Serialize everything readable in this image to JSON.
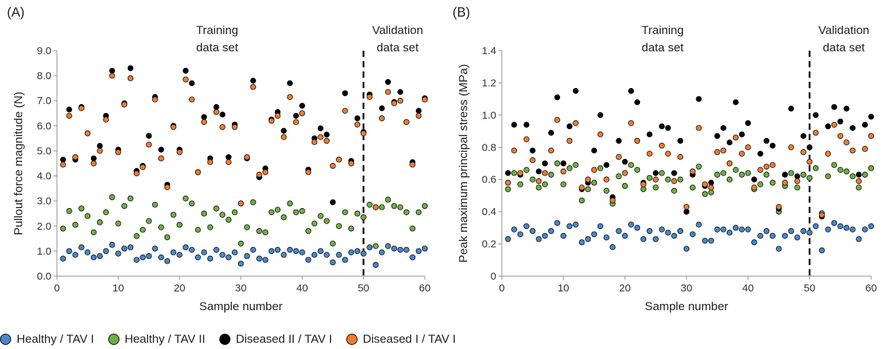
{
  "colors": {
    "Healthy / TAV I": "#4a86c8",
    "Healthy / TAV II": "#6fad47",
    "Diseased II / TAV I": "#000000",
    "Diseased I / TAV I": "#ec7c30"
  },
  "legend": [
    {
      "label": "Healthy  / TAV I",
      "series": "Healthy / TAV I"
    },
    {
      "label": "Healthy  / TAV II",
      "series": "Healthy / TAV II"
    },
    {
      "label": "Diseased II / TAV I",
      "series": "Diseased II / TAV I"
    },
    {
      "label": "Diseased I / TAV I",
      "series": "Diseased I / TAV I"
    }
  ],
  "chart_data": [
    {
      "type": "scatter",
      "panel_label": "(A)",
      "xlabel": "Sample number",
      "ylabel": "Pullout force magnitude (N)",
      "xlim": [
        0,
        60
      ],
      "ylim": [
        0,
        9
      ],
      "xticks": [
        "0",
        "10",
        "20",
        "30",
        "40",
        "50",
        "60"
      ],
      "yticks": [
        "0.0",
        "1.0",
        "2.0",
        "3.0",
        "4.0",
        "5.0",
        "6.0",
        "7.0",
        "8.0",
        "9.0"
      ],
      "divider_x": 50,
      "annotations": {
        "training_1": "Training",
        "training_2": "data set",
        "validation_1": "Validation",
        "validation_2": "data set"
      },
      "x": [
        1,
        2,
        3,
        4,
        5,
        6,
        7,
        8,
        9,
        10,
        11,
        12,
        13,
        14,
        15,
        16,
        17,
        18,
        19,
        20,
        21,
        22,
        23,
        24,
        25,
        26,
        27,
        28,
        29,
        30,
        31,
        32,
        33,
        34,
        35,
        36,
        37,
        38,
        39,
        40,
        41,
        42,
        43,
        44,
        45,
        46,
        47,
        48,
        49,
        50,
        51,
        52,
        53,
        54,
        55,
        56,
        57,
        58,
        59,
        60
      ],
      "series": [
        {
          "name": "Healthy / TAV I",
          "values": [
            0.7,
            1.0,
            0.85,
            1.15,
            0.95,
            0.75,
            0.8,
            1.0,
            1.25,
            0.9,
            1.1,
            1.15,
            0.65,
            0.75,
            0.8,
            1.1,
            0.75,
            0.6,
            0.95,
            0.85,
            1.15,
            1.05,
            0.75,
            0.95,
            0.7,
            1.05,
            0.85,
            0.75,
            0.95,
            0.5,
            0.8,
            1.05,
            0.7,
            0.65,
            1.0,
            1.05,
            0.85,
            1.05,
            1.0,
            0.95,
            0.65,
            0.85,
            1.0,
            0.85,
            0.55,
            0.85,
            0.65,
            0.95,
            1.0,
            0.9,
            1.15,
            0.45,
            0.95,
            1.2,
            1.1,
            1.05,
            1.05,
            0.75,
            1.0,
            1.1
          ]
        },
        {
          "name": "Healthy / TAV II",
          "values": [
            1.9,
            2.6,
            2.05,
            2.7,
            2.4,
            1.75,
            2.15,
            2.55,
            3.15,
            2.1,
            2.8,
            3.1,
            1.6,
            1.85,
            2.2,
            2.85,
            1.95,
            1.55,
            2.45,
            2.05,
            3.1,
            2.9,
            1.85,
            2.5,
            1.95,
            2.7,
            2.45,
            2.25,
            2.55,
            1.3,
            1.95,
            2.95,
            1.8,
            1.75,
            2.55,
            2.65,
            2.35,
            2.9,
            2.55,
            2.6,
            1.8,
            2.1,
            2.4,
            2.2,
            1.3,
            2.0,
            2.55,
            1.9,
            2.5,
            2.35,
            2.85,
            1.2,
            2.75,
            3.05,
            2.8,
            2.75,
            2.55,
            1.9,
            2.55,
            2.8
          ]
        },
        {
          "name": "Diseased II / TAV I",
          "values": [
            4.65,
            6.65,
            4.65,
            6.75,
            5.7,
            4.7,
            5.2,
            6.4,
            8.2,
            5.05,
            6.9,
            8.3,
            4.2,
            4.4,
            5.6,
            7.15,
            5.05,
            3.65,
            6.0,
            5.05,
            8.2,
            7.7,
            4.15,
            6.35,
            4.7,
            6.75,
            6.45,
            4.75,
            6.05,
            2.9,
            4.7,
            7.8,
            3.95,
            4.3,
            6.25,
            6.55,
            5.8,
            7.7,
            6.4,
            6.8,
            4.25,
            5.5,
            5.9,
            5.65,
            2.95,
            4.65,
            7.3,
            4.6,
            6.3,
            5.75,
            7.25,
            2.75,
            6.7,
            7.75,
            6.95,
            7.35,
            6.15,
            4.55,
            6.6,
            7.1
          ]
        },
        {
          "name": "Diseased I / TAV I",
          "values": [
            4.45,
            6.4,
            4.75,
            6.7,
            5.7,
            4.5,
            5.0,
            6.25,
            8.0,
            4.95,
            6.85,
            7.9,
            4.1,
            4.35,
            5.25,
            7.05,
            4.7,
            3.55,
            5.95,
            4.95,
            7.85,
            7.05,
            4.15,
            6.15,
            4.55,
            6.55,
            5.95,
            4.55,
            5.95,
            2.9,
            4.75,
            7.55,
            4.05,
            4.15,
            6.2,
            6.4,
            5.55,
            7.15,
            6.15,
            6.5,
            4.15,
            5.35,
            5.55,
            5.4,
            4.4,
            4.65,
            6.6,
            4.5,
            6.05,
            5.7,
            7.15,
            2.75,
            6.3,
            7.35,
            6.9,
            7.0,
            6.15,
            4.45,
            6.4,
            7.05
          ]
        }
      ]
    },
    {
      "type": "scatter",
      "panel_label": "(B)",
      "xlabel": "Sample number",
      "ylabel": "Peak maximum principal stress (MPa)",
      "xlim": [
        0,
        60
      ],
      "ylim": [
        0,
        1.4
      ],
      "xticks": [
        "0",
        "10",
        "20",
        "30",
        "40",
        "50",
        "60"
      ],
      "yticks": [
        "0",
        "0.2",
        "0.4",
        "0.6",
        "0.8",
        "1.0",
        "1.2",
        "1.4"
      ],
      "divider_x": 50,
      "annotations": {
        "training_1": "Training",
        "training_2": "data set",
        "validation_1": "Validation",
        "validation_2": "data set"
      },
      "x": [
        1,
        2,
        3,
        4,
        5,
        6,
        7,
        8,
        9,
        10,
        11,
        12,
        13,
        14,
        15,
        16,
        17,
        18,
        19,
        20,
        21,
        22,
        23,
        24,
        25,
        26,
        27,
        28,
        29,
        30,
        31,
        32,
        33,
        34,
        35,
        36,
        37,
        38,
        39,
        40,
        41,
        42,
        43,
        44,
        45,
        46,
        47,
        48,
        49,
        50,
        51,
        52,
        53,
        54,
        55,
        56,
        57,
        58,
        59,
        60
      ],
      "series": [
        {
          "name": "Healthy / TAV I",
          "values": [
            0.23,
            0.29,
            0.26,
            0.31,
            0.28,
            0.23,
            0.25,
            0.28,
            0.33,
            0.25,
            0.31,
            0.32,
            0.21,
            0.23,
            0.26,
            0.31,
            0.24,
            0.18,
            0.28,
            0.25,
            0.32,
            0.3,
            0.23,
            0.28,
            0.23,
            0.29,
            0.27,
            0.25,
            0.28,
            0.17,
            0.26,
            0.32,
            0.22,
            0.22,
            0.29,
            0.29,
            0.27,
            0.3,
            0.29,
            0.29,
            0.21,
            0.25,
            0.28,
            0.25,
            0.17,
            0.25,
            0.28,
            0.24,
            0.28,
            0.27,
            0.31,
            0.16,
            0.29,
            0.33,
            0.31,
            0.3,
            0.29,
            0.23,
            0.29,
            0.31
          ]
        },
        {
          "name": "Healthy / TAV II",
          "values": [
            0.54,
            0.64,
            0.57,
            0.66,
            0.6,
            0.55,
            0.57,
            0.63,
            0.7,
            0.57,
            0.67,
            0.69,
            0.47,
            0.54,
            0.58,
            0.67,
            0.53,
            0.45,
            0.62,
            0.56,
            0.69,
            0.66,
            0.54,
            0.61,
            0.55,
            0.64,
            0.6,
            0.53,
            0.6,
            0.4,
            0.55,
            0.68,
            0.51,
            0.52,
            0.63,
            0.64,
            0.6,
            0.66,
            0.63,
            0.64,
            0.54,
            0.57,
            0.63,
            0.58,
            0.4,
            0.56,
            0.64,
            0.55,
            0.63,
            0.61,
            0.67,
            0.39,
            0.62,
            0.69,
            0.66,
            0.65,
            0.62,
            0.55,
            0.63,
            0.67
          ]
        },
        {
          "name": "Diseased II / TAV I",
          "values": [
            0.64,
            0.94,
            0.63,
            0.94,
            0.78,
            0.65,
            0.7,
            0.89,
            1.11,
            0.7,
            0.93,
            1.15,
            0.54,
            0.58,
            0.78,
            1.0,
            0.69,
            0.49,
            0.84,
            0.71,
            1.15,
            1.08,
            0.58,
            0.88,
            0.64,
            0.93,
            0.92,
            0.64,
            0.84,
            0.4,
            0.63,
            1.1,
            0.56,
            0.58,
            0.87,
            0.92,
            0.83,
            1.08,
            0.88,
            0.95,
            0.6,
            0.76,
            0.84,
            0.81,
            0.42,
            0.63,
            1.04,
            0.62,
            0.87,
            0.8,
            1.0,
            0.37,
            0.93,
            1.05,
            0.96,
            1.04,
            0.92,
            0.63,
            0.94,
            0.99
          ]
        },
        {
          "name": "Diseased I / TAV I",
          "values": [
            0.58,
            0.78,
            0.64,
            0.85,
            0.72,
            0.59,
            0.64,
            0.78,
            0.97,
            0.65,
            0.84,
            0.95,
            0.55,
            0.6,
            0.66,
            0.88,
            0.6,
            0.47,
            0.74,
            0.64,
            0.95,
            0.84,
            0.57,
            0.76,
            0.6,
            0.81,
            0.76,
            0.59,
            0.74,
            0.43,
            0.65,
            0.92,
            0.57,
            0.55,
            0.77,
            0.78,
            0.7,
            0.86,
            0.76,
            0.8,
            0.55,
            0.66,
            0.68,
            0.69,
            0.43,
            0.58,
            0.8,
            0.59,
            0.77,
            0.71,
            0.89,
            0.38,
            0.76,
            0.94,
            0.87,
            0.83,
            0.78,
            0.59,
            0.79,
            0.87
          ]
        }
      ]
    }
  ]
}
